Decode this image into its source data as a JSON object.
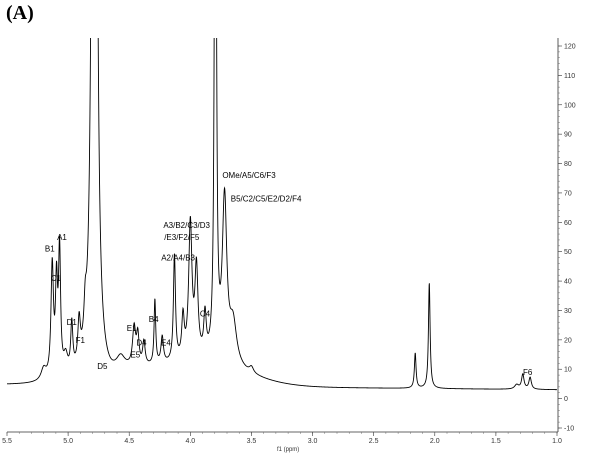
{
  "panel_label": "(A)",
  "chart_data": {
    "type": "line",
    "title": "",
    "xlabel": "f1 (ppm)",
    "ylabel": "",
    "xlim": [
      5.5,
      1.0
    ],
    "ylim": [
      -10,
      122
    ],
    "x_reversed": true,
    "grid": false,
    "x_ticks": [
      5.5,
      5.0,
      4.5,
      4.0,
      3.5,
      3.0,
      2.5,
      2.0,
      1.5,
      1.0
    ],
    "x_tick_labels": [
      "5.5",
      "5.0",
      "4.5",
      "4.0",
      "3.5",
      "3.0",
      "2.5",
      "2.0",
      "1.5",
      "1.0"
    ],
    "y_ticks": [
      -10,
      0,
      10,
      20,
      30,
      40,
      50,
      60,
      70,
      80,
      90,
      100,
      110,
      120
    ],
    "y_tick_labels": [
      "-10",
      "0",
      "10",
      "20",
      "30",
      "40",
      "50",
      "60",
      "70",
      "80",
      "90",
      "100",
      "110",
      "120"
    ],
    "y_axis_side": "right",
    "spectrum": {
      "baseline": 3,
      "peaks": [
        {
          "x": 5.2,
          "h": 4,
          "w": 0.025
        },
        {
          "x": 5.13,
          "h": 38,
          "w": 0.012
        },
        {
          "x": 5.095,
          "h": 30,
          "w": 0.01
        },
        {
          "x": 5.07,
          "h": 42,
          "w": 0.01
        },
        {
          "x": 5.02,
          "h": 6,
          "w": 0.02
        },
        {
          "x": 4.97,
          "h": 16,
          "w": 0.01
        },
        {
          "x": 4.91,
          "h": 14,
          "w": 0.012
        },
        {
          "x": 4.86,
          "h": 11,
          "w": 0.012
        },
        {
          "x": 4.79,
          "h": 30,
          "w": 0.004
        },
        {
          "x": 4.785,
          "h": 900,
          "w": 0.012
        },
        {
          "x": 4.57,
          "h": 4,
          "w": 0.04
        },
        {
          "x": 4.46,
          "h": 13,
          "w": 0.015
        },
        {
          "x": 4.43,
          "h": 10,
          "w": 0.012
        },
        {
          "x": 4.38,
          "h": 8,
          "w": 0.012
        },
        {
          "x": 4.29,
          "h": 22,
          "w": 0.008
        },
        {
          "x": 4.23,
          "h": 9,
          "w": 0.012
        },
        {
          "x": 4.13,
          "h": 36,
          "w": 0.01
        },
        {
          "x": 4.06,
          "h": 14,
          "w": 0.012
        },
        {
          "x": 4.0,
          "h": 46,
          "w": 0.016
        },
        {
          "x": 3.95,
          "h": 30,
          "w": 0.015
        },
        {
          "x": 3.88,
          "h": 14,
          "w": 0.012
        },
        {
          "x": 3.795,
          "h": 280,
          "w": 0.008
        },
        {
          "x": 3.72,
          "h": 55,
          "w": 0.022
        },
        {
          "x": 3.65,
          "h": 14,
          "w": 0.035
        },
        {
          "x": 3.5,
          "h": 2,
          "w": 0.02
        },
        {
          "x": 2.16,
          "h": 12,
          "w": 0.008
        },
        {
          "x": 2.045,
          "h": 36,
          "w": 0.008
        },
        {
          "x": 1.33,
          "h": 1.5,
          "w": 0.02
        },
        {
          "x": 1.28,
          "h": 5,
          "w": 0.012
        },
        {
          "x": 1.22,
          "h": 4,
          "w": 0.012
        }
      ],
      "broad_humps": [
        {
          "x": 3.9,
          "h": 7,
          "w": 0.35
        },
        {
          "x": 4.5,
          "h": 3,
          "w": 0.3
        }
      ]
    },
    "annotations": [
      {
        "label": "B1",
        "x": 5.15,
        "y": 50
      },
      {
        "label": "A1",
        "x": 5.05,
        "y": 54
      },
      {
        "label": "C1",
        "x": 5.1,
        "y": 40
      },
      {
        "label": "D1",
        "x": 4.97,
        "y": 25
      },
      {
        "label": "F1",
        "x": 4.9,
        "y": 19
      },
      {
        "label": "D5",
        "x": 4.72,
        "y": 10
      },
      {
        "label": "E1",
        "x": 4.48,
        "y": 23
      },
      {
        "label": "D4",
        "x": 4.4,
        "y": 18
      },
      {
        "label": "E5",
        "x": 4.45,
        "y": 14
      },
      {
        "label": "B4",
        "x": 4.3,
        "y": 26
      },
      {
        "label": "E4",
        "x": 4.2,
        "y": 18
      },
      {
        "label": "C4",
        "x": 3.88,
        "y": 28
      },
      {
        "label": "A2/A4/B3",
        "x": 4.1,
        "y": 47
      },
      {
        "label": "/E3/F2/F5",
        "x": 4.07,
        "y": 54
      },
      {
        "label": "A3/B2/C3/D3",
        "x": 4.03,
        "y": 58
      },
      {
        "label": "B5/C2/C5/E2/D2/F4",
        "x": 3.38,
        "y": 67
      },
      {
        "label": "OMe/A5/C6/F3",
        "x": 3.52,
        "y": 75
      },
      {
        "label": "F6",
        "x": 1.24,
        "y": 8
      }
    ]
  }
}
